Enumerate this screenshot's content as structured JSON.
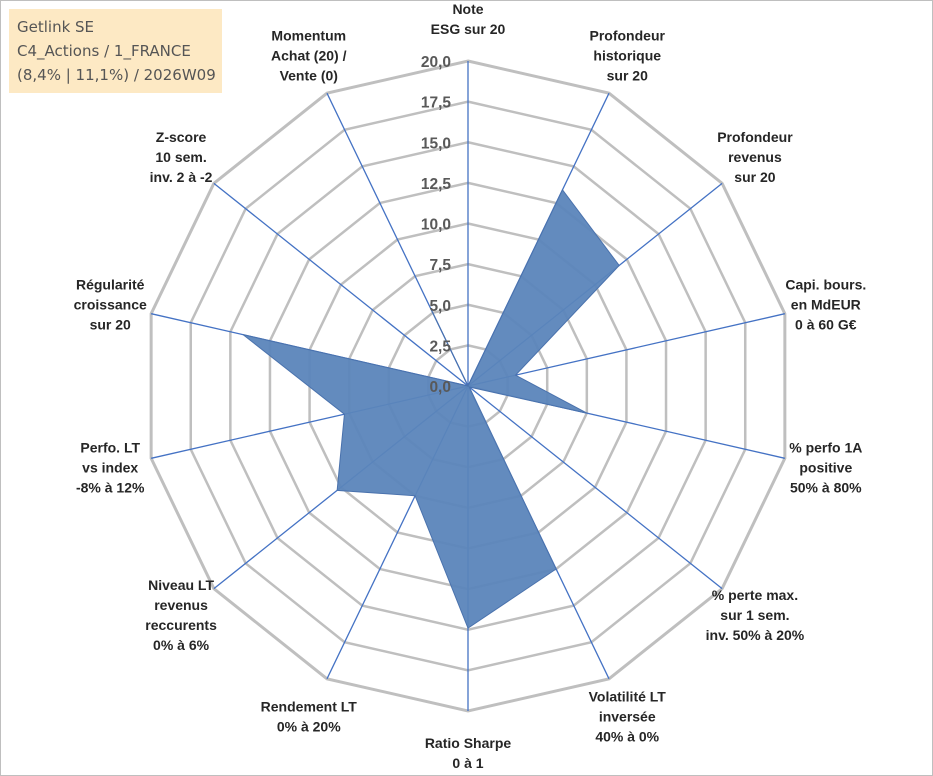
{
  "info_box": {
    "line1": "Getlink SE",
    "line2": "C4_Actions / 1_FRANCE",
    "line3": "(8,4% | 11,1%) / 2026W09"
  },
  "colors": {
    "grid": "#bfbfbf",
    "axis": "#4472c4",
    "fill": "#5b85bb",
    "fill_stroke": "#4a72ad"
  },
  "chart_data": {
    "type": "radar",
    "title": "",
    "rmax": 20,
    "rlim": [
      0,
      20
    ],
    "ticks": [
      "0,0",
      "2,5",
      "5,0",
      "7,5",
      "10,0",
      "12,5",
      "15,0",
      "17,5",
      "20,0"
    ],
    "categories": [
      [
        "Note",
        "ESG sur 20"
      ],
      [
        "Profondeur",
        "historique",
        "sur 20"
      ],
      [
        "Profondeur",
        "revenus",
        "sur 20"
      ],
      [
        "Capi. bours.",
        "en MdEUR",
        "0 à 60 G€"
      ],
      [
        "% perfo 1A",
        "positive",
        "50% à 80%"
      ],
      [
        "% perte max.",
        "sur 1 sem.",
        "inv. 50% à 20%"
      ],
      [
        "Volatilité LT",
        "inversée",
        "40% à 0%"
      ],
      [
        "Ratio Sharpe",
        "0 à 1"
      ],
      [
        "Rendement LT",
        "0% à 20%"
      ],
      [
        "Niveau LT",
        "revenus",
        "reccurents",
        "0% à 6%"
      ],
      [
        "Perfo. LT",
        "vs index",
        "-8% à 12%"
      ],
      [
        "Régularité",
        "croissance",
        "sur 20"
      ],
      [
        "Z-score",
        "10 sem.",
        "inv. 2 à -2"
      ],
      [
        "Momentum",
        "Achat (20) /",
        "Vente (0)"
      ]
    ],
    "series": [
      {
        "values": [
          0,
          13.4,
          11.9,
          3.0,
          7.5,
          0.1,
          12.5,
          14.9,
          7.5,
          10.3,
          7.8,
          14.2,
          0,
          5.2
        ]
      }
    ],
    "grid": true,
    "legend": "none"
  }
}
